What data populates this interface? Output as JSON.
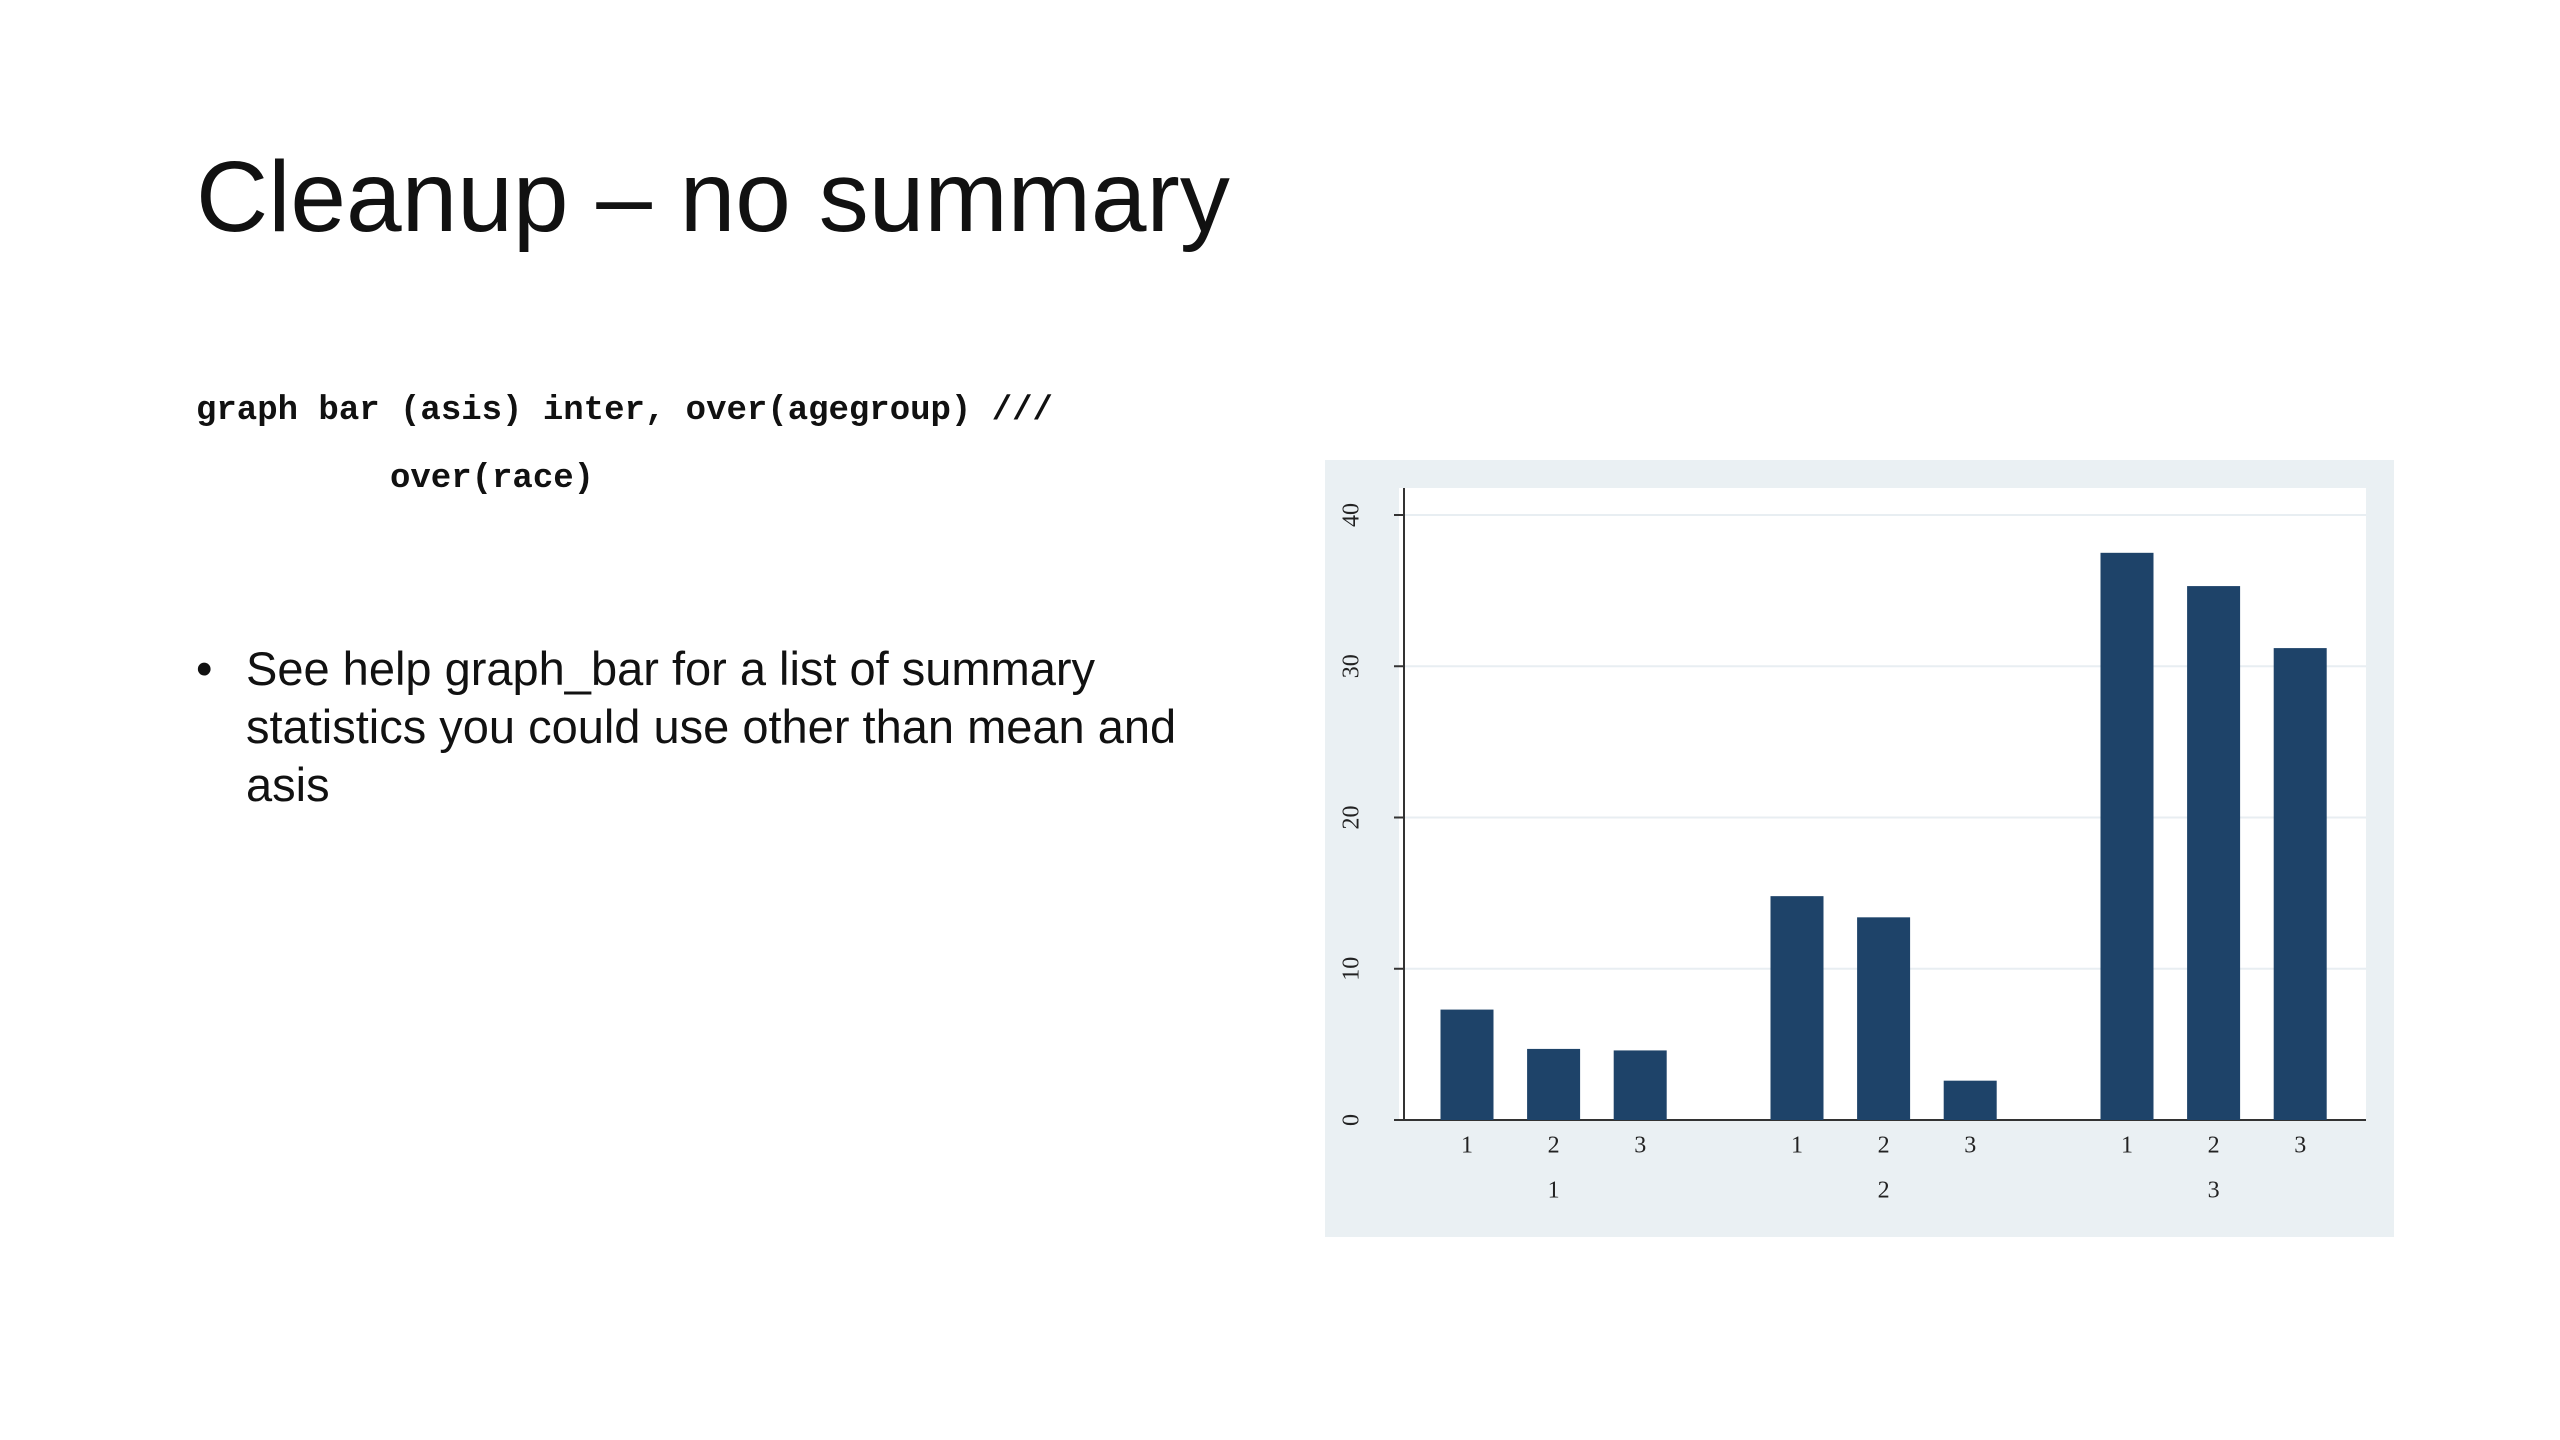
{
  "slide": {
    "title": "Cleanup – no summary",
    "code": [
      "graph bar (asis) inter, over(agegroup) ///",
      "over(race)"
    ],
    "bullets": [
      "See help graph_bar for a list of summary statistics you could use other than mean and asis"
    ]
  },
  "chart_data": {
    "type": "bar",
    "color": "#1e4369",
    "groups": [
      {
        "name": "1",
        "categories": [
          "1",
          "2",
          "3"
        ],
        "values": [
          7.3,
          4.7,
          4.6
        ]
      },
      {
        "name": "2",
        "categories": [
          "1",
          "2",
          "3"
        ],
        "values": [
          14.8,
          13.4,
          2.6
        ]
      },
      {
        "name": "3",
        "categories": [
          "1",
          "2",
          "3"
        ],
        "values": [
          37.5,
          35.3,
          31.2
        ]
      }
    ],
    "ylim": [
      0,
      40
    ],
    "yticks": [
      0,
      10,
      20,
      30,
      40
    ],
    "grid": true
  }
}
